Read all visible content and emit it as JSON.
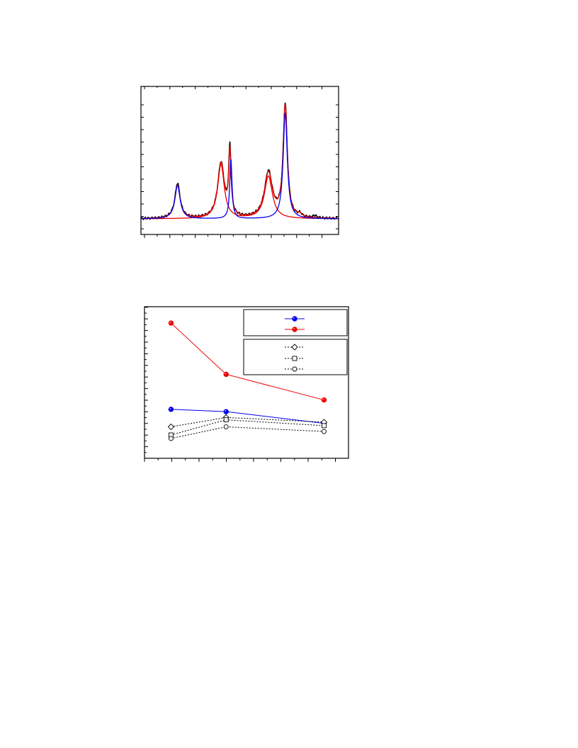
{
  "colors": {
    "frame": "#000000",
    "blue": "#0000ee",
    "red": "#ee0000",
    "black": "#000000",
    "marker_fill": "#ffffff"
  },
  "chart_data": [
    {
      "type": "line",
      "grid": false,
      "legend": "none",
      "xlim": [
        0,
        100
      ],
      "ylim": [
        0,
        1.1
      ],
      "series": [
        {
          "color_key": "black",
          "peaks": [
            {
              "center": 18.5,
              "height": 0.305,
              "width": 1.6
            },
            {
              "center": 40.5,
              "height": 0.48,
              "width": 2.0
            },
            {
              "center": 45.0,
              "height": 0.58,
              "width": 0.7
            },
            {
              "center": 64.5,
              "height": 0.4,
              "width": 2.4
            },
            {
              "center": 73.0,
              "height": 0.98,
              "width": 1.25
            },
            {
              "center": 80.5,
              "height": 0.025,
              "width": 1.0
            },
            {
              "center": 88.0,
              "height": 0.02,
              "width": 1.0
            }
          ]
        },
        {
          "color_key": "red",
          "peaks": [
            {
              "center": 18.5,
              "height": 0.29,
              "width": 1.6
            },
            {
              "center": 40.5,
              "height": 0.475,
              "width": 2.0
            },
            {
              "center": 45.0,
              "height": 0.55,
              "width": 0.7
            },
            {
              "center": 64.5,
              "height": 0.39,
              "width": 2.4
            },
            {
              "center": 73.0,
              "height": 0.97,
              "width": 1.25
            },
            {
              "center": 80.5,
              "height": 0.025,
              "width": 1.0
            }
          ]
        },
        {
          "color_key": "red",
          "peaks": [
            {
              "center": 40.5,
              "height": 0.47,
              "width": 2.0
            },
            {
              "center": 64.5,
              "height": 0.37,
              "width": 2.4
            }
          ]
        },
        {
          "color_key": "blue",
          "peaks": [
            {
              "center": 18.5,
              "height": 0.29,
              "width": 1.6
            },
            {
              "center": 45.5,
              "height": 0.52,
              "width": 0.7
            },
            {
              "center": 73.0,
              "height": 0.92,
              "width": 1.25
            }
          ]
        }
      ]
    },
    {
      "type": "line",
      "grid": false,
      "legend": "top-right",
      "xlim": [
        0,
        10
      ],
      "ylim": [
        0,
        13
      ],
      "series": [
        {
          "color_key": "blue",
          "marker": "filled-circle",
          "line": "solid",
          "x": [
            1.3,
            4.0,
            8.8
          ],
          "y": [
            4.2,
            4.0,
            3.0
          ]
        },
        {
          "color_key": "red",
          "marker": "filled-circle",
          "line": "solid",
          "x": [
            1.3,
            4.0,
            8.8
          ],
          "y": [
            11.6,
            7.2,
            5.0
          ]
        },
        {
          "color_key": "black",
          "marker": "diamond",
          "line": "dotted",
          "x": [
            1.3,
            4.0,
            8.8
          ],
          "y": [
            2.7,
            3.5,
            3.1
          ]
        },
        {
          "color_key": "black",
          "marker": "square",
          "line": "dotted",
          "x": [
            1.3,
            4.0,
            8.8
          ],
          "y": [
            2.0,
            3.3,
            2.8
          ]
        },
        {
          "color_key": "black",
          "marker": "circle",
          "line": "dotted",
          "x": [
            1.3,
            4.0,
            8.8
          ],
          "y": [
            1.7,
            2.7,
            2.3
          ]
        }
      ]
    }
  ]
}
